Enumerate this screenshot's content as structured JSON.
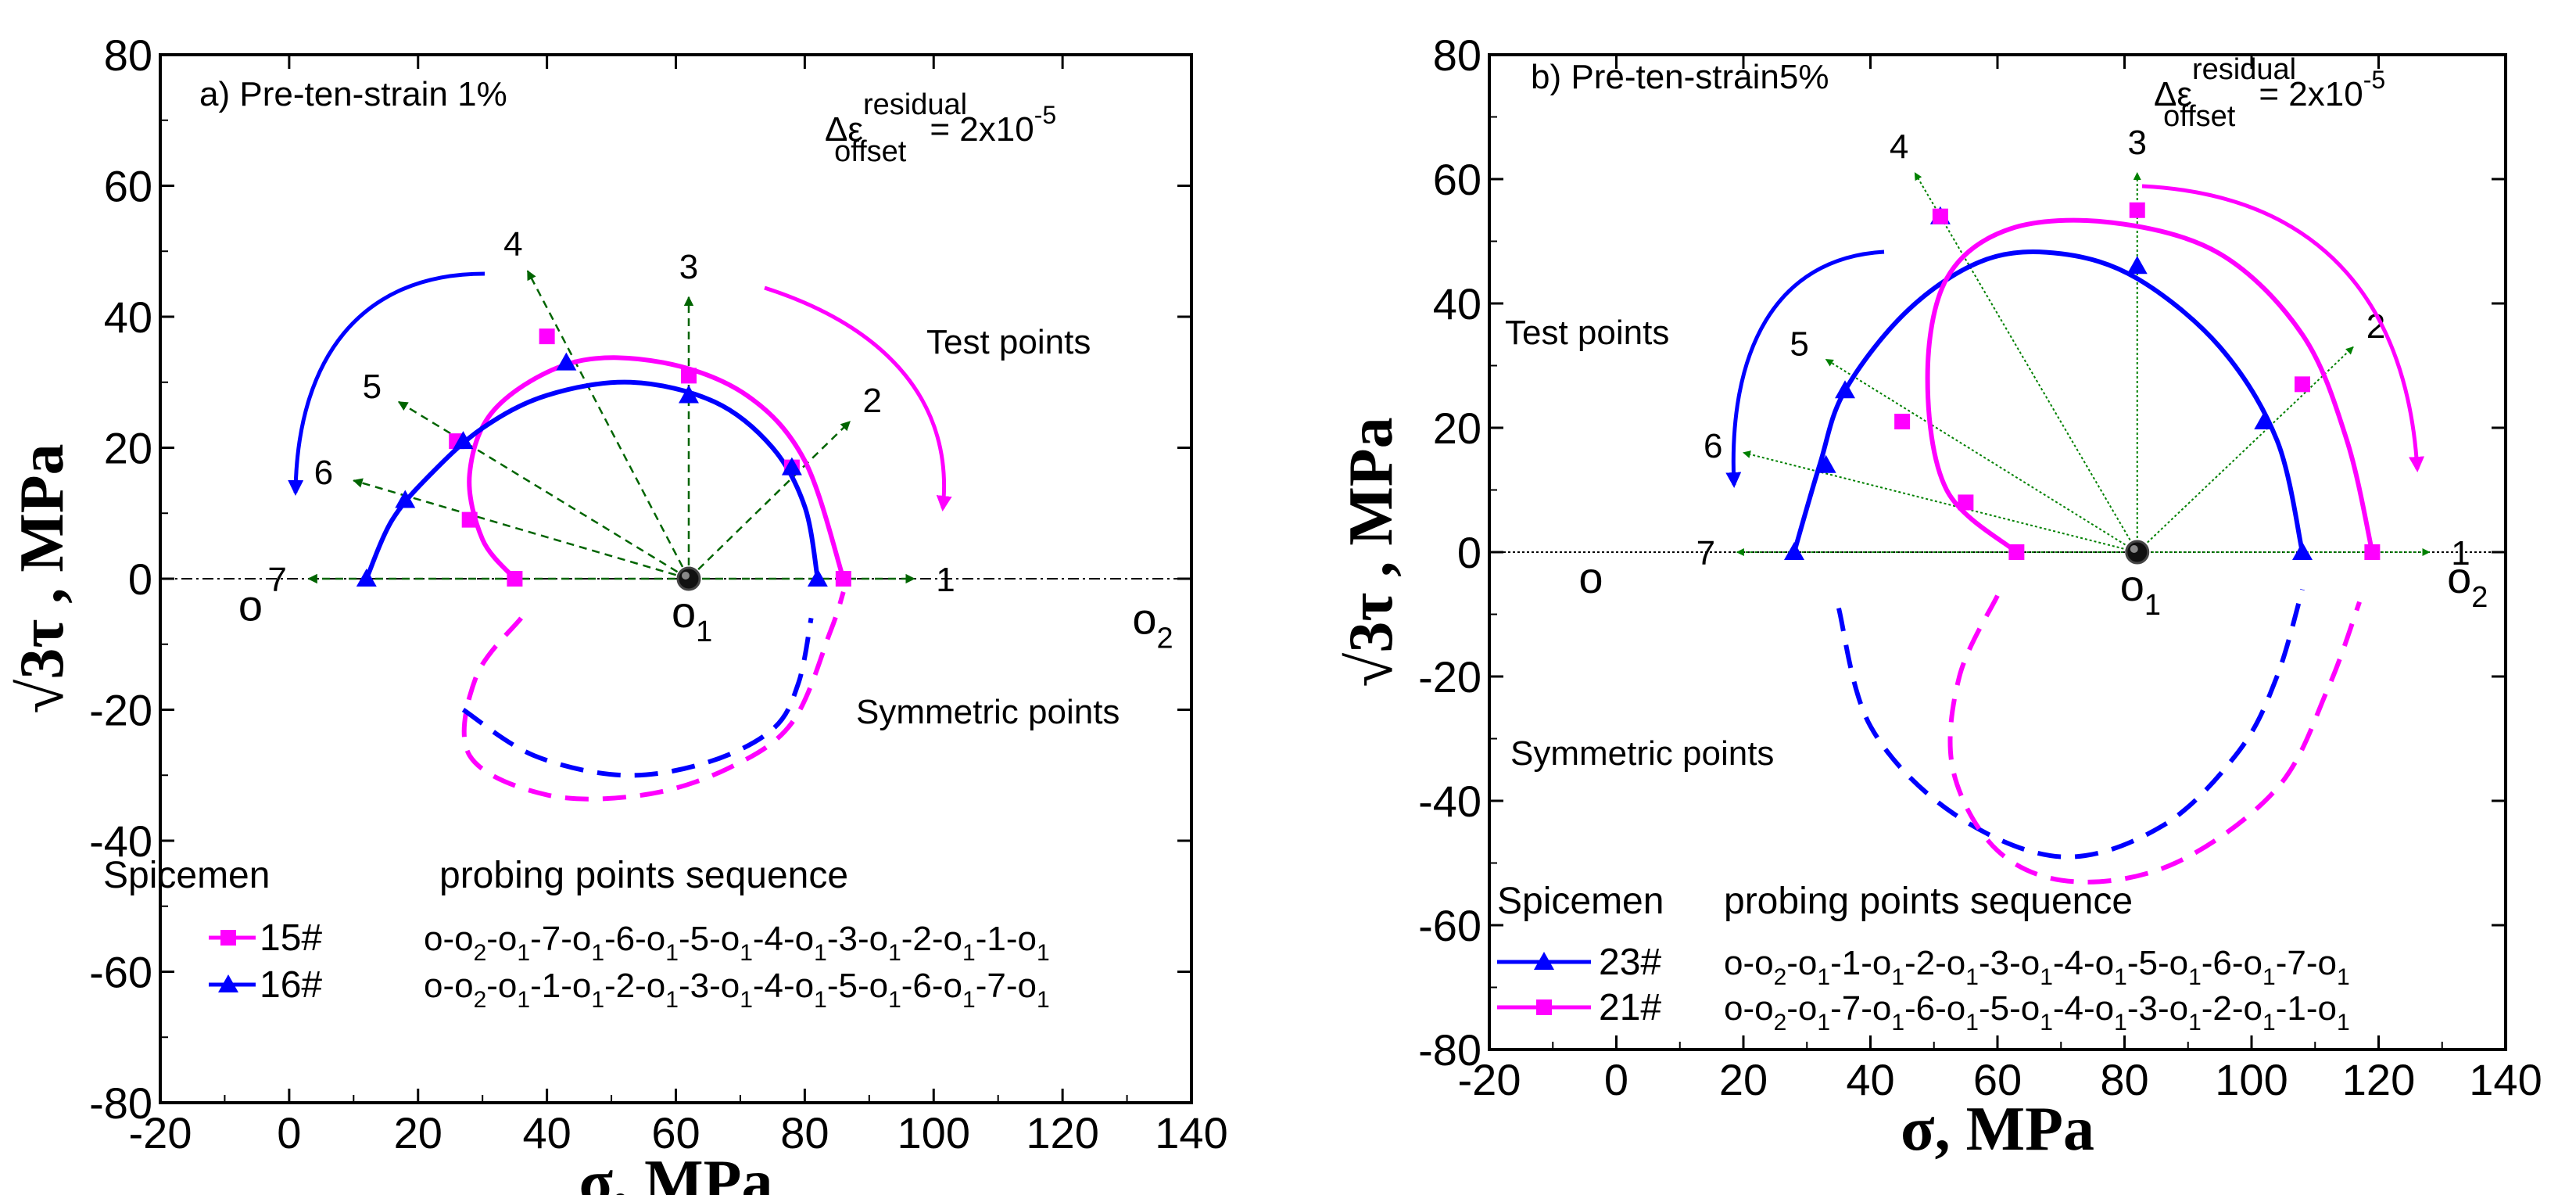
{
  "chart_data": [
    {
      "type": "scatter",
      "panel_label": "a) Pre-ten-strain 1%",
      "residual": {
        "prefix": "Δε",
        "sup": "residual",
        "sub": "offset",
        "value": "= 2x10",
        "exp": "-5"
      },
      "xlabel": "σ,  MPa",
      "ylabel": "√3τ , MPa",
      "xlim": [
        -20,
        140
      ],
      "ylim": [
        -80,
        80
      ],
      "xticks": [
        -20,
        0,
        20,
        40,
        60,
        80,
        100,
        120,
        140
      ],
      "yticks": [
        -80,
        -60,
        -40,
        -20,
        0,
        20,
        40,
        60,
        80
      ],
      "colors": {
        "magenta": "#ff00ff",
        "blue": "#0000ff",
        "green": "#006400"
      },
      "center": {
        "name": "o1",
        "x": 62,
        "y": 0
      },
      "points_o": [
        {
          "name": "o",
          "x": -6,
          "y": -4
        },
        {
          "name": "o2",
          "x": 134,
          "y": -6
        }
      ],
      "probes": [
        {
          "label": "1",
          "tip": [
            97,
            0
          ]
        },
        {
          "label": "2",
          "tip": [
            87,
            24
          ]
        },
        {
          "label": "3",
          "tip": [
            62,
            43
          ]
        },
        {
          "label": "4",
          "tip": [
            37,
            47
          ]
        },
        {
          "label": "5",
          "tip": [
            17,
            27
          ]
        },
        {
          "label": "6",
          "tip": [
            10,
            15
          ]
        },
        {
          "label": "7",
          "tip": [
            3,
            0
          ]
        }
      ],
      "series": [
        {
          "name": "15#",
          "color": "#ff00ff",
          "marker": "square",
          "x": [
            86,
            78,
            62,
            40,
            26,
            28,
            35
          ],
          "y": [
            0,
            17,
            31,
            37,
            21,
            9,
            0
          ],
          "curve": [
            [
              35,
              0
            ],
            [
              30,
              6
            ],
            [
              28,
              16
            ],
            [
              32,
              26
            ],
            [
              44,
              33
            ],
            [
              58,
              33
            ],
            [
              71,
              28
            ],
            [
              80,
              18
            ],
            [
              86,
              0
            ]
          ],
          "mirror": [
            [
              36,
              -6
            ],
            [
              29,
              -15
            ],
            [
              28,
              -27
            ],
            [
              40,
              -33
            ],
            [
              55,
              -33
            ],
            [
              68,
              -29
            ],
            [
              78,
              -22
            ],
            [
              84,
              -8
            ],
            [
              86,
              -2
            ]
          ]
        },
        {
          "name": "16#",
          "color": "#0000ff",
          "marker": "triangle",
          "x": [
            82,
            78,
            62,
            43,
            27,
            18,
            12
          ],
          "y": [
            0,
            17,
            28,
            33,
            21,
            12,
            0
          ],
          "curve": [
            [
              12,
              0
            ],
            [
              16,
              9
            ],
            [
              22,
              16
            ],
            [
              30,
              23
            ],
            [
              40,
              28
            ],
            [
              53,
              30
            ],
            [
              66,
              27
            ],
            [
              75,
              20
            ],
            [
              80,
              11
            ],
            [
              82,
              0
            ]
          ],
          "mirror": [
            [
              27,
              -20
            ],
            [
              38,
              -27
            ],
            [
              52,
              -30
            ],
            [
              65,
              -28
            ],
            [
              75,
              -23
            ],
            [
              79,
              -16
            ],
            [
              81,
              -6
            ]
          ]
        }
      ],
      "annotations": [
        "Test points",
        "Symmetric points"
      ],
      "legend": {
        "header_specimen": "Spicemen",
        "header_sequence": "probing points sequence",
        "entries": [
          {
            "name": "15#",
            "sequence": "o-o2-o1-7-o1-6-o1-5-o1-4-o1-3-o1-2-o1-1-o1"
          },
          {
            "name": "16#",
            "sequence": "o-o2-o1-1-o1-2-o1-3-o1-4-o1-5-o1-6-o1-7-o1"
          }
        ]
      }
    },
    {
      "type": "scatter",
      "panel_label": "b) Pre-ten-strain5%",
      "residual": {
        "prefix": "Δε",
        "sup": "residual",
        "sub": "offset",
        "value": "= 2x10",
        "exp": "-5"
      },
      "xlabel": "σ,  MPa",
      "ylabel": "√3τ , MPa",
      "xlim": [
        -20,
        140
      ],
      "ylim": [
        -80,
        80
      ],
      "xticks": [
        -20,
        0,
        20,
        40,
        60,
        80,
        100,
        120,
        140
      ],
      "yticks": [
        -80,
        -60,
        -40,
        -20,
        0,
        20,
        40,
        60,
        80
      ],
      "colors": {
        "magenta": "#ff00ff",
        "blue": "#0000ff",
        "green": "#008000"
      },
      "center": {
        "name": "o1",
        "x": 82,
        "y": 0
      },
      "points_o": [
        {
          "name": "o",
          "x": -4,
          "y": -4
        },
        {
          "name": "o2",
          "x": 134,
          "y": -4
        }
      ],
      "probes": [
        {
          "label": "1",
          "tip": [
            128,
            0
          ]
        },
        {
          "label": "2",
          "tip": [
            116,
            33
          ]
        },
        {
          "label": "3",
          "tip": [
            82,
            61
          ]
        },
        {
          "label": "4",
          "tip": [
            47,
            61
          ]
        },
        {
          "label": "5",
          "tip": [
            33,
            31
          ]
        },
        {
          "label": "6",
          "tip": [
            20,
            16
          ]
        },
        {
          "label": "7",
          "tip": [
            19,
            0
          ]
        }
      ],
      "series": [
        {
          "name": "23#",
          "color": "#0000ff",
          "marker": "triangle",
          "x": [
            108,
            102,
            82,
            51,
            36,
            33,
            28
          ],
          "y": [
            0,
            21,
            46,
            54,
            26,
            14,
            0
          ],
          "curve": [
            [
              28,
              0
            ],
            [
              32,
              14
            ],
            [
              36,
              26
            ],
            [
              46,
              39
            ],
            [
              58,
              47
            ],
            [
              70,
              48
            ],
            [
              82,
              44
            ],
            [
              95,
              33
            ],
            [
              104,
              18
            ],
            [
              108,
              0
            ]
          ],
          "mirror": [
            [
              35,
              -9
            ],
            [
              40,
              -28
            ],
            [
              53,
              -42
            ],
            [
              70,
              -49
            ],
            [
              86,
              -44
            ],
            [
              98,
              -32
            ],
            [
              104,
              -20
            ],
            [
              108,
              -6
            ]
          ]
        },
        {
          "name": "21#",
          "color": "#ff00ff",
          "marker": "square",
          "x": [
            119,
            108,
            82,
            51,
            45,
            55,
            63
          ],
          "y": [
            0,
            27,
            55,
            54,
            21,
            8,
            0
          ],
          "curve": [
            [
              63,
              0
            ],
            [
              52,
              10
            ],
            [
              49,
              28
            ],
            [
              52,
              44
            ],
            [
              62,
              52
            ],
            [
              78,
              53
            ],
            [
              95,
              48
            ],
            [
              108,
              35
            ],
            [
              115,
              18
            ],
            [
              119,
              0
            ]
          ],
          "mirror": [
            [
              60,
              -7
            ],
            [
              54,
              -20
            ],
            [
              53,
              -35
            ],
            [
              60,
              -48
            ],
            [
              72,
              -53
            ],
            [
              88,
              -50
            ],
            [
              104,
              -38
            ],
            [
              112,
              -22
            ],
            [
              117,
              -8
            ]
          ]
        }
      ],
      "annotations": [
        "Test points",
        "Symmetric points"
      ],
      "legend": {
        "header_specimen": "Spicemen",
        "header_sequence": "probing points sequence",
        "entries": [
          {
            "name": "23#",
            "sequence": "o-o2-o1-1-o1-2-o1-3-o1-4-o1-5-o1-6-o1-7-o1"
          },
          {
            "name": "21#",
            "sequence": "o-o2-o1-7-o1-6-o1-5-o1-4-o1-3-o1-2-o1-1-o1"
          }
        ]
      }
    }
  ]
}
